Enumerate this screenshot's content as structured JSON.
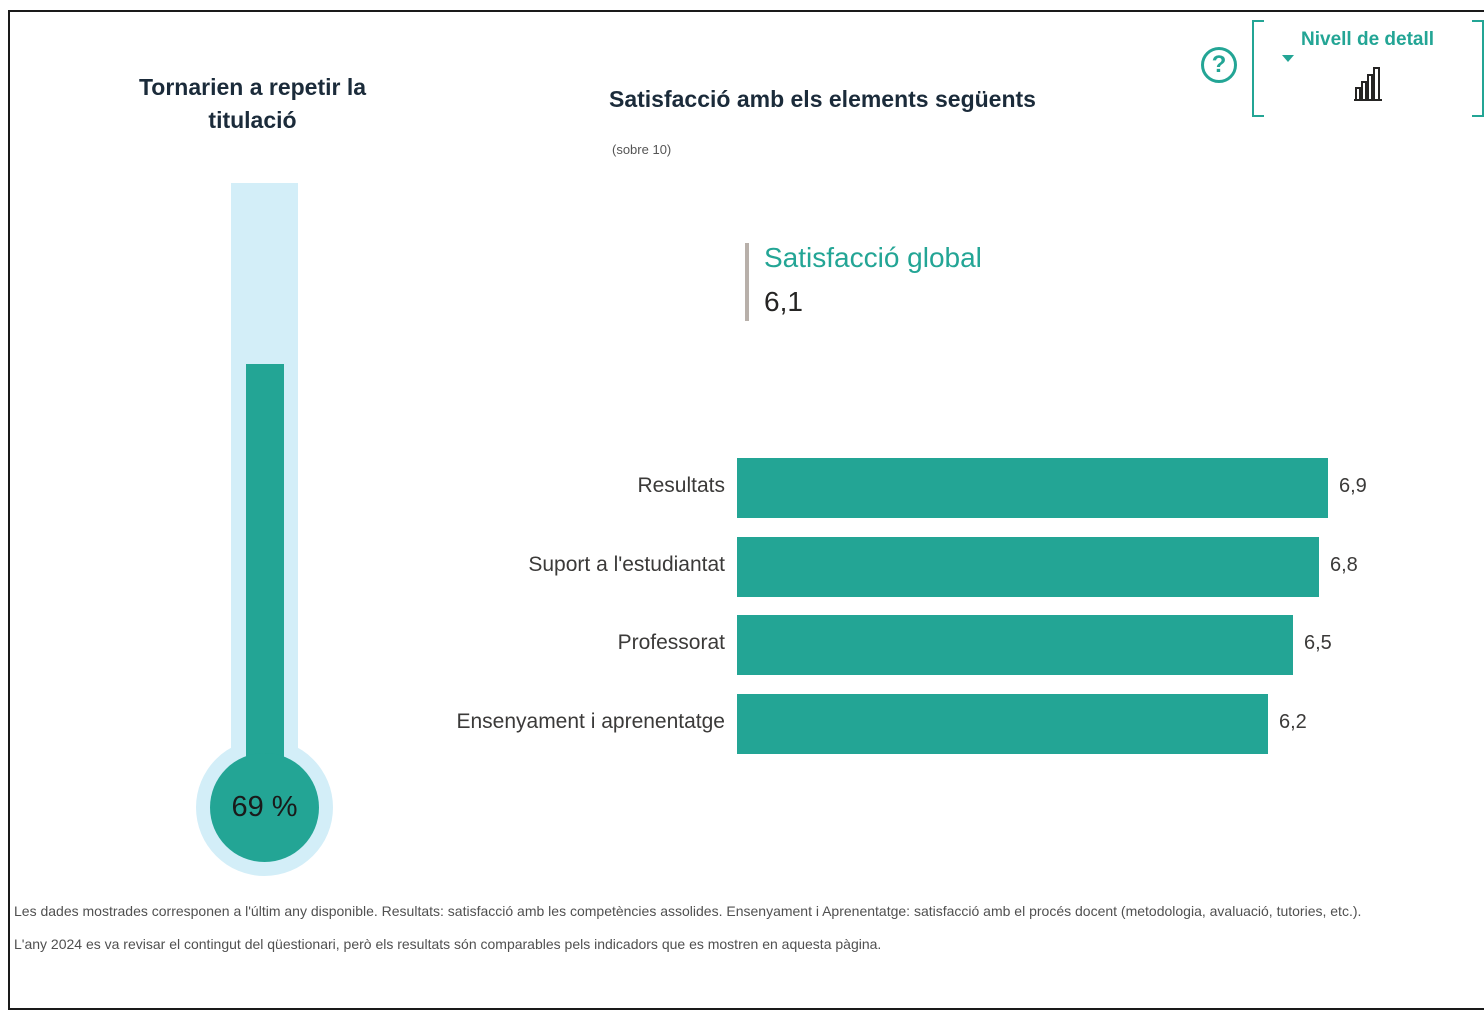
{
  "thermometer": {
    "title_line1": "Tornarien a repetir la",
    "title_line2": "titulació",
    "value_label": "69 %",
    "value_percent": 69
  },
  "chart": {
    "title": "Satisfacció amb els elements següents",
    "subtitle": "(sobre 10)"
  },
  "kpi": {
    "label": "Satisfacció global",
    "value": "6,1"
  },
  "controls": {
    "help_symbol": "?",
    "detail_label": "Nivell de detall",
    "help_icon": "question-circle-icon",
    "detail_icon": "bar-chart-icon",
    "dropdown_icon": "caret-down-icon"
  },
  "chart_data": {
    "type": "bar",
    "orientation": "horizontal",
    "title": "Satisfacció amb els elements següents",
    "subtitle": "(sobre 10)",
    "categories": [
      "Resultats",
      "Suport a l'estudiantat",
      "Professorat",
      "Ensenyament i aprenentatge"
    ],
    "values": [
      6.9,
      6.8,
      6.5,
      6.2
    ],
    "value_labels": [
      "6,9",
      "6,8",
      "6,5",
      "6,2"
    ],
    "xlim": [
      0,
      10
    ],
    "grid": false,
    "color": "#23a595"
  },
  "footnotes": {
    "line1": "Les dades mostrades corresponen a l'últim any disponible. Resultats: satisfacció amb les competències assolides. Ensenyament i Aprenentatge: satisfacció amb el procés docent (metodologia, avaluació, tutories, etc.).",
    "line2": "L'any 2024 es va revisar el contingut del qüestionari, però els resultats són comparables pels indicadors que es mostren en aquesta pàgina."
  },
  "colors": {
    "accent": "#23a595",
    "tube": "#d3eef8",
    "title": "#1b2b3a"
  }
}
